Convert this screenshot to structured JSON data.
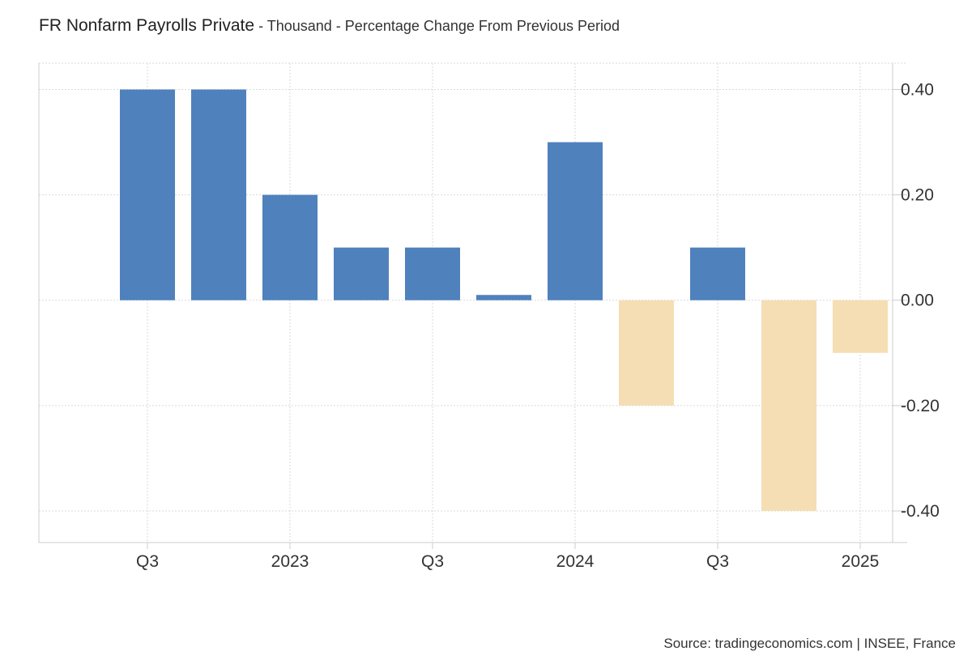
{
  "header": {
    "title": "FR Nonfarm Payrolls Private",
    "subtitle": " - Thousand - Percentage Change From Previous Period"
  },
  "source": "Source: tradingeconomics.com | INSEE, France",
  "colors": {
    "positive": "#4f81bd",
    "negative": "#f5deb3",
    "grid": "#d9d9d9",
    "axis": "#cccccc"
  },
  "chart_data": {
    "type": "bar",
    "categories": [
      "2022 Q3",
      "2022 Q4",
      "2023 Q1",
      "2023 Q2",
      "2023 Q3",
      "2023 Q4",
      "2024 Q1",
      "2024 Q2",
      "2024 Q3",
      "2024 Q4",
      "2025 Q1"
    ],
    "values": [
      0.4,
      0.4,
      0.2,
      0.1,
      0.1,
      0.01,
      0.3,
      -0.2,
      0.1,
      -0.4,
      -0.1
    ],
    "ylim": [
      -0.46,
      0.45
    ],
    "yticks": [
      0.4,
      0.2,
      0.0,
      -0.2,
      -0.4
    ],
    "ytick_labels": [
      "0.40",
      "0.20",
      "0.00",
      "-0.20",
      "-0.40"
    ],
    "xticks": [
      {
        "at": "2022 Q3",
        "label": "Q3"
      },
      {
        "at": "2023 Q1",
        "label": "2023"
      },
      {
        "at": "2023 Q3",
        "label": "Q3"
      },
      {
        "at": "2024 Q1",
        "label": "2024"
      },
      {
        "at": "2024 Q3",
        "label": "Q3"
      },
      {
        "at": "2025 Q1",
        "label": "2025"
      }
    ],
    "grid": true,
    "y_axis_side": "right",
    "legend": "none"
  }
}
